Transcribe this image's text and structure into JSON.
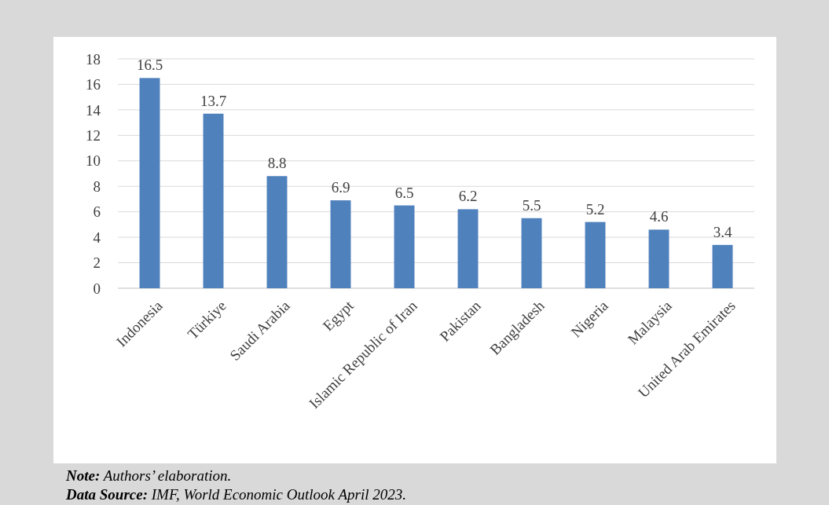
{
  "chart_data": {
    "type": "bar",
    "categories": [
      "Indonesia",
      "Türkiye",
      "Saudi Arabia",
      "Egypt",
      "Islamic Republic of Iran",
      "Pakistan",
      "Bangladesh",
      "Nigeria",
      "Malaysia",
      "United Arab Emirates"
    ],
    "values": [
      16.5,
      13.7,
      8.8,
      6.9,
      6.5,
      6.2,
      5.5,
      5.2,
      4.6,
      3.4
    ],
    "color": "#4f81bd",
    "ylim": [
      0,
      18
    ],
    "yticks": [
      0,
      2,
      4,
      6,
      8,
      10,
      12,
      14,
      16,
      18
    ],
    "grid": true,
    "data_labels": true,
    "annotations": [
      "Note: Authors’ elaboration.",
      "Data Source: IMF, World Economic Outlook April 2023."
    ]
  }
}
